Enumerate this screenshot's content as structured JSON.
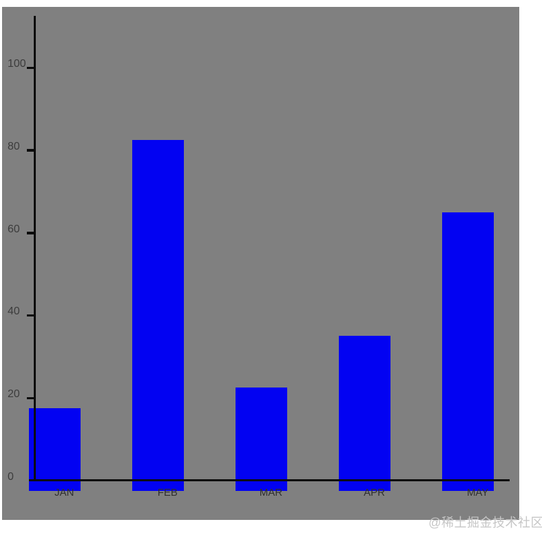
{
  "chart_data": {
    "type": "bar",
    "title": "",
    "xlabel": "",
    "ylabel": "",
    "categories": [
      "JAN",
      "FEB",
      "MAR",
      "APR",
      "MAY"
    ],
    "values": [
      17.5,
      82.5,
      22.5,
      35,
      65
    ],
    "yticks": [
      0,
      20,
      40,
      60,
      80,
      100
    ],
    "ylim": [
      0,
      112
    ],
    "grid": false,
    "legend": null,
    "colors": {
      "bar": "#0202f2",
      "plot_background": "#808080",
      "page_background": "#ffffff",
      "axis": "#0c0c0c",
      "tick_label": "#3c3c3c",
      "category_label": "#2f2f2f"
    }
  },
  "watermark": {
    "text": "@稀土掘金技术社区",
    "color": "#c6c6c6"
  }
}
